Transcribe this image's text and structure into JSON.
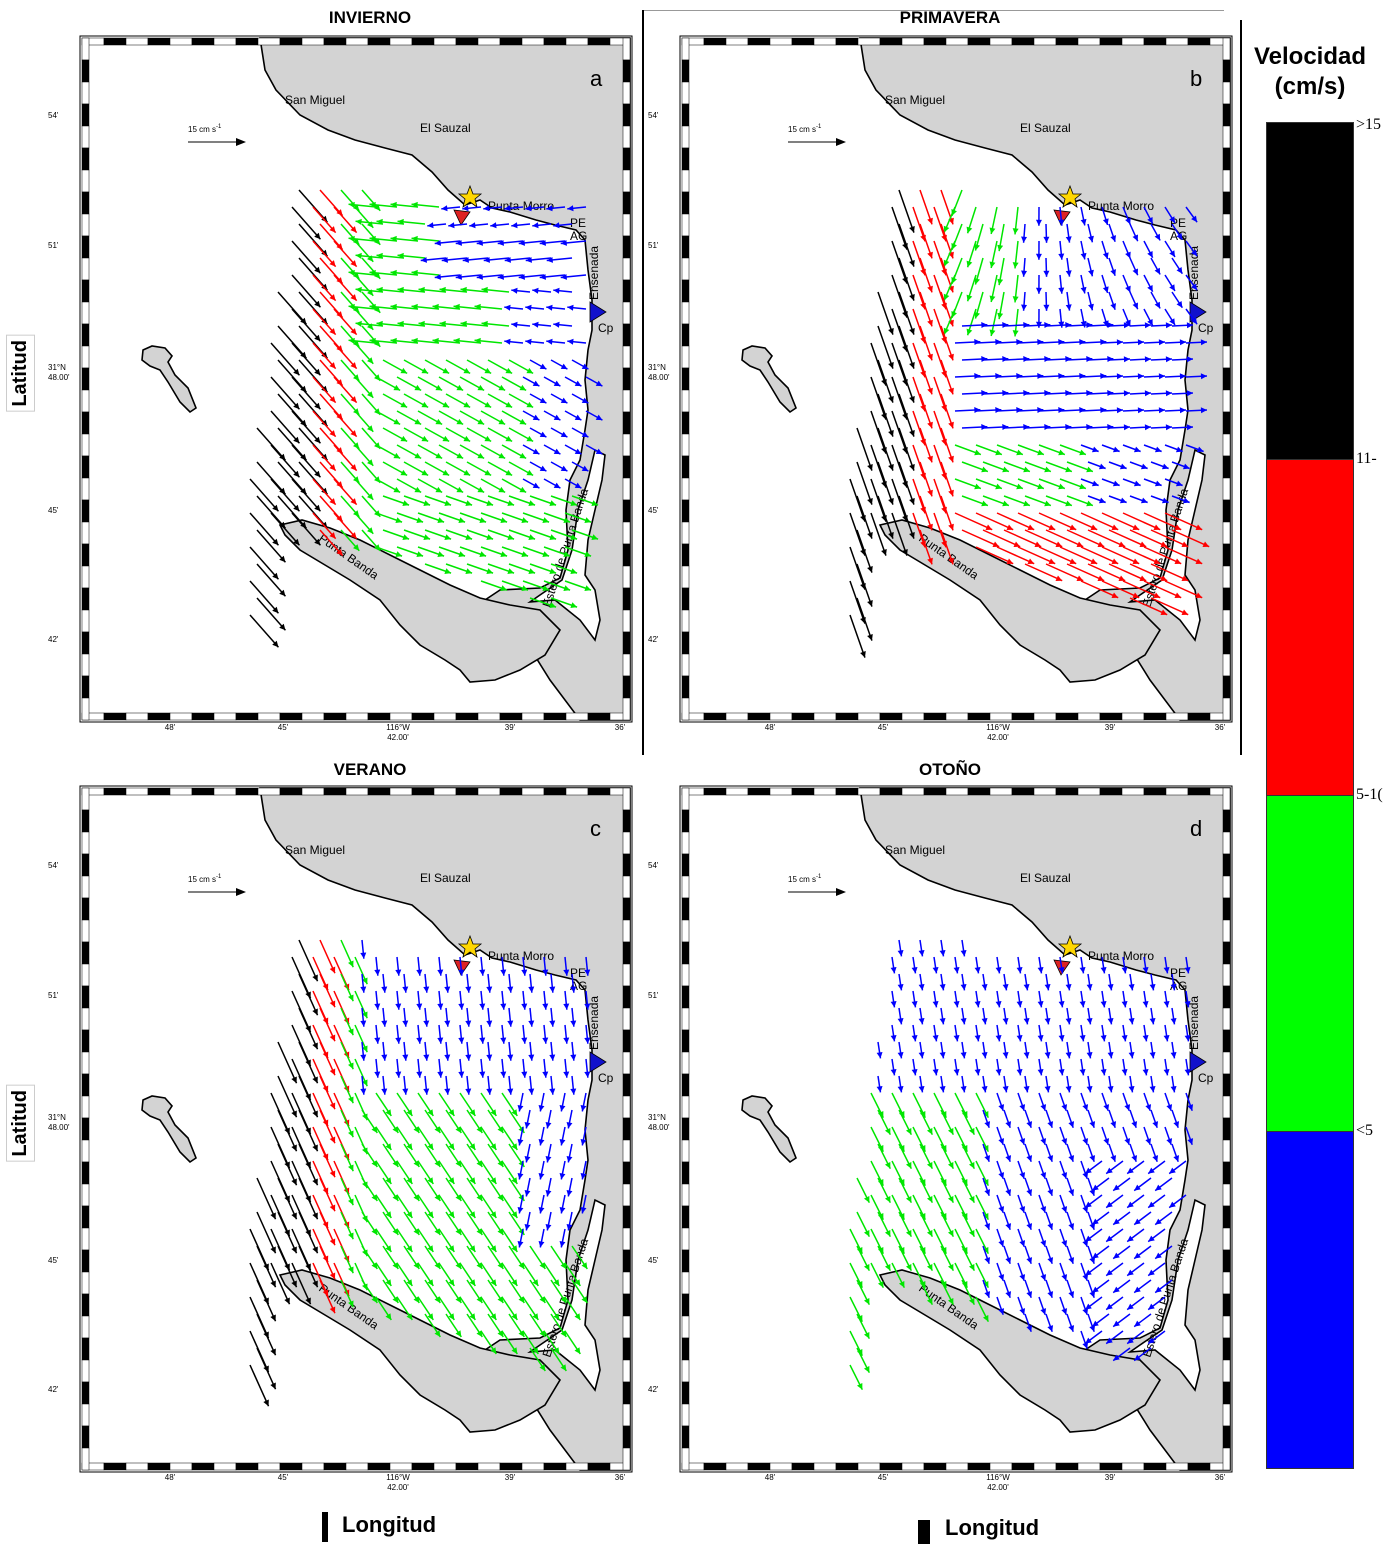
{
  "panels": [
    {
      "id": "a",
      "title": "INVIERNO",
      "letter": "a"
    },
    {
      "id": "b",
      "title": "PRIMAVERA",
      "letter": "b"
    },
    {
      "id": "c",
      "title": "VERANO",
      "letter": "c"
    },
    {
      "id": "d",
      "title": "OTOÑO",
      "letter": "d"
    }
  ],
  "map_labels": {
    "san_miguel": "San Miguel",
    "el_sauzal": "El Sauzal",
    "punta_morro": "Punta Morro",
    "pe": "PE",
    "ag": "AG",
    "ensenada": "Ensenada",
    "cp": "Cp",
    "punta_banda": "Punta Banda",
    "estero": "Estero de Punta Banda",
    "scale_text": "15 cm s",
    "scale_sup": "-1"
  },
  "axes": {
    "lat_ticks": [
      "54'",
      "51'",
      "31°N\n48.00'",
      "45'",
      "42'"
    ],
    "lon_ticks": [
      "48'",
      "45'",
      "116°W\n42.00'",
      "39'",
      "36'"
    ],
    "xlabel": "Longitud",
    "ylabel": "Latitud"
  },
  "legend": {
    "title_line1": "Velocidad",
    "title_line2": "(cm/s)",
    "classes": [
      {
        "label": ">15",
        "color": "#000000"
      },
      {
        "label": "11-",
        "color": "#ff0000"
      },
      {
        "label": "5-1(",
        "color": "#00ff00"
      },
      {
        "label": "<5",
        "color": "#0000ff"
      }
    ]
  },
  "colors": {
    "land": "#d3d3d3",
    "black": "#000000",
    "red": "#ff0000",
    "green": "#00e600",
    "blue": "#0000ff",
    "star": "#ffd700",
    "red_tri": "#dd2222",
    "blue_tri": "#1111cc"
  }
}
